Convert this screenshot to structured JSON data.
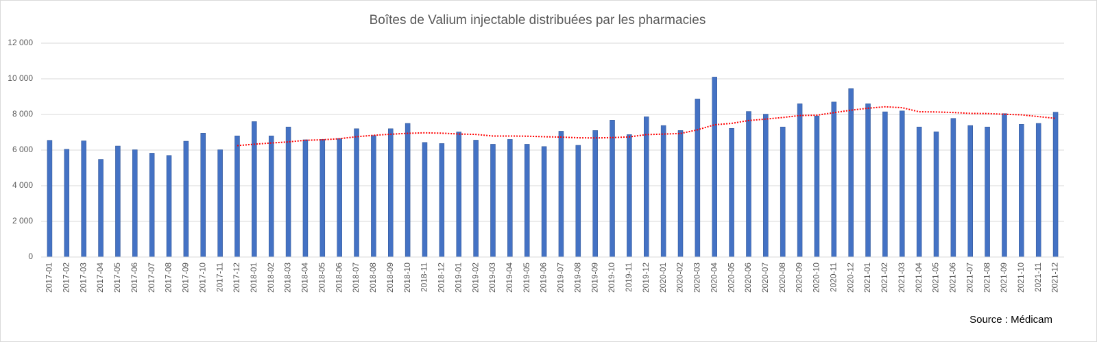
{
  "chart_data": {
    "type": "bar",
    "title": "Boîtes de Valium injectable distribuées par les pharmacies",
    "source": "Source : Médicam",
    "categories": [
      "2017-01",
      "2017-02",
      "2017-03",
      "2017-04",
      "2017-05",
      "2017-06",
      "2017-07",
      "2017-08",
      "2017-09",
      "2017-10",
      "2017-11",
      "2017-12",
      "2018-01",
      "2018-02",
      "2018-03",
      "2018-04",
      "2018-05",
      "2018-06",
      "2018-07",
      "2018-08",
      "2018-09",
      "2018-10",
      "2018-11",
      "2018-12",
      "2019-01",
      "2019-02",
      "2019-03",
      "2019-04",
      "2019-05",
      "2019-06",
      "2019-07",
      "2019-08",
      "2019-09",
      "2019-10",
      "2019-11",
      "2019-12",
      "2020-01",
      "2020-02",
      "2020-03",
      "2020-04",
      "2020-05",
      "2020-06",
      "2020-07",
      "2020-08",
      "2020-09",
      "2020-10",
      "2020-11",
      "2020-12",
      "2021-01",
      "2021-02",
      "2021-03",
      "2021-04",
      "2021-05",
      "2021-06",
      "2021-07",
      "2021-08",
      "2021-09",
      "2021-10",
      "2021-11",
      "2021-12"
    ],
    "series": [
      {
        "type": "bar",
        "color": "#4472c4",
        "values": [
          6550,
          6050,
          6520,
          5480,
          6230,
          6020,
          5830,
          5700,
          6500,
          6950,
          6020,
          6800,
          7600,
          6800,
          7300,
          6580,
          6600,
          6650,
          7200,
          6820,
          7200,
          7500,
          6430,
          6370,
          7020,
          6560,
          6330,
          6600,
          6330,
          6200,
          7060,
          6270,
          7100,
          7680,
          6870,
          7870,
          7380,
          7100,
          8870,
          10100,
          7220,
          8170,
          8020,
          7300,
          8600,
          7920,
          8700,
          9450,
          8600,
          8150,
          8200,
          7300,
          7030,
          7780,
          7380,
          7300,
          8050,
          7450,
          7500,
          8130
        ]
      },
      {
        "type": "line",
        "color": "#ff0000",
        "dotted": true,
        "values": [
          null,
          null,
          null,
          null,
          null,
          null,
          null,
          null,
          null,
          null,
          null,
          6250,
          6330,
          6400,
          6460,
          6550,
          6580,
          6640,
          6750,
          6830,
          6890,
          6940,
          6970,
          6950,
          6900,
          6880,
          6790,
          6790,
          6780,
          6750,
          6730,
          6690,
          6680,
          6700,
          6740,
          6870,
          6900,
          6930,
          7140,
          7420,
          7500,
          7660,
          7740,
          7830,
          7940,
          7960,
          8100,
          8240,
          8350,
          8430,
          8380,
          8150,
          8140,
          8110,
          8060,
          8050,
          8010,
          7980,
          7880,
          7780
        ]
      }
    ],
    "ylim": [
      0,
      12000
    ],
    "yticks": [
      0,
      {
        "value": 2000,
        "label": "2 000"
      },
      {
        "value": 4000,
        "label": "4 000"
      },
      {
        "value": 6000,
        "label": "6 000"
      },
      {
        "value": 8000,
        "label": "8 000"
      },
      {
        "value": 10000,
        "label": "10 000"
      },
      {
        "value": 12000,
        "label": "12 000"
      }
    ],
    "grid": true
  }
}
